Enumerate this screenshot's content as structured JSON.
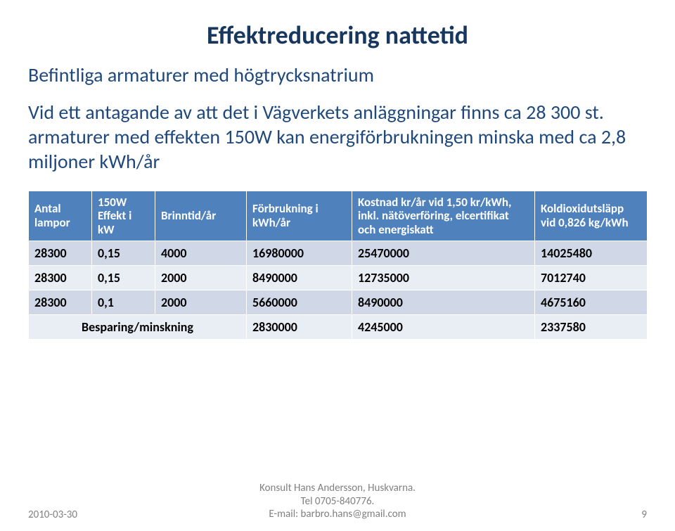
{
  "title": "Effektreducering nattetid",
  "subtitle": "Befintliga armaturer med högtrycksnatrium",
  "bodytext": "Vid ett antagande av att det i Vägverkets anläggningar finns ca 28 300 st. armaturer med effekten 150W kan energiförbrukningen minska med ca 2,8 miljoner kWh/år",
  "table": {
    "headers": [
      "Antal lampor",
      "150W Effekt i kW",
      "Brinntid/år",
      "Förbrukning i kWh/år",
      "Kostnad kr/år vid 1,50 kr/kWh, inkl. nätöverföring, elcertifikat och energiskatt",
      "Koldioxidutsläpp vid 0,826 kg/kWh"
    ],
    "rows": [
      [
        "28300",
        "0,15",
        "4000",
        "16980000",
        "25470000",
        "14025480"
      ],
      [
        "28300",
        "0,15",
        "2000",
        "8490000",
        "12735000",
        "7012740"
      ],
      [
        "28300",
        "0,1",
        "2000",
        "5660000",
        "8490000",
        "4675160"
      ]
    ],
    "summary_label": "Besparing/minskning",
    "summary": [
      "2830000",
      "4245000",
      "2337580"
    ]
  },
  "footer": {
    "date": "2010-03-30",
    "center1": "Konsult Hans Andersson, Huskvarna.",
    "center2": "Tel 0705-840776.",
    "center3": "E-mail: barbro.hans@gmail.com",
    "page": "9"
  },
  "colors": {
    "title": "#17375e",
    "body": "#1f497d",
    "th_bg": "#4f81bd",
    "band_a": "#d0d8e8",
    "band_b": "#e9edf4",
    "footer": "#808080"
  }
}
